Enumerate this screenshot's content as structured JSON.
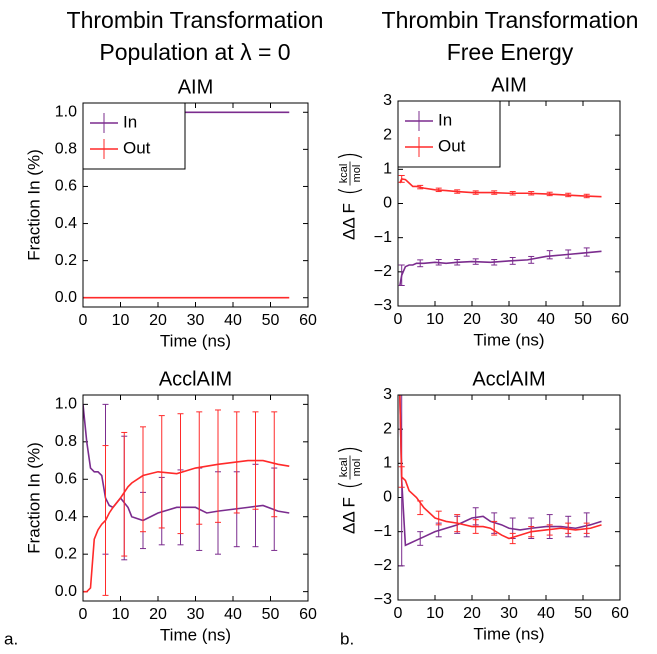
{
  "figure": {
    "column_titles": [
      [
        "Thrombin Transformation",
        "Population at λ = 0"
      ],
      [
        "Thrombin Transformation",
        "Free Energy"
      ]
    ],
    "panel_labels": [
      "a.",
      "b."
    ]
  },
  "chart_data": [
    {
      "type": "line",
      "title": "AIM",
      "xlabel": "Time (ns)",
      "ylabel": "Fraction In (%)",
      "xlim": [
        0,
        60
      ],
      "ylim": [
        -0.05,
        1.05
      ],
      "xticks": [
        0,
        10,
        20,
        30,
        40,
        50,
        60
      ],
      "yticks": [
        {
          "value": 0,
          "label": "0.0"
        },
        0.2,
        0.4,
        0.6,
        0.8,
        {
          "value": 1,
          "label": "1.0"
        }
      ],
      "legend": "upper left",
      "x": [
        0,
        55
      ],
      "series": [
        {
          "name": "In",
          "color": "#7b2c8e",
          "values": [
            1,
            1
          ]
        },
        {
          "name": "Out",
          "color": "#ff2a2a",
          "values": [
            0,
            0
          ]
        }
      ]
    },
    {
      "type": "line",
      "title": "AIM",
      "xlabel": "Time (ns)",
      "ylabel": "ΔΔ F",
      "ylabel_unit": [
        "kcal",
        "mol"
      ],
      "xlim": [
        0,
        60
      ],
      "ylim": [
        -3,
        3
      ],
      "xticks": [
        0,
        10,
        20,
        30,
        40,
        50,
        60
      ],
      "yticks": [
        {
          "value": -3,
          "label": "−3"
        },
        {
          "value": -2,
          "label": "−2"
        },
        {
          "value": -1,
          "label": "−1"
        },
        0,
        1,
        2,
        3
      ],
      "legend": "upper left",
      "x": [
        0.5,
        1,
        2,
        3,
        4,
        5,
        7,
        10,
        13,
        16,
        20,
        25,
        30,
        35,
        40,
        45,
        50,
        55
      ],
      "series": [
        {
          "name": "In",
          "color": "#7b2c8e",
          "values": [
            -2.4,
            -2.1,
            -1.85,
            -1.8,
            -1.8,
            -1.75,
            -1.75,
            -1.72,
            -1.75,
            -1.72,
            -1.7,
            -1.72,
            -1.68,
            -1.65,
            -1.55,
            -1.5,
            -1.45,
            -1.4
          ],
          "error_x": [
            1,
            6,
            11,
            16,
            21,
            26,
            31,
            36,
            41,
            46,
            51
          ],
          "error_y": [
            -2.1,
            -1.75,
            -1.72,
            -1.72,
            -1.7,
            -1.72,
            -1.68,
            -1.65,
            -1.5,
            -1.48,
            -1.42
          ],
          "errors": [
            0.3,
            0.1,
            0.08,
            0.08,
            0.08,
            0.08,
            0.1,
            0.1,
            0.12,
            0.12,
            0.12
          ]
        },
        {
          "name": "Out",
          "color": "#ff2a2a",
          "values": [
            0.6,
            0.72,
            0.7,
            0.6,
            0.5,
            0.5,
            0.45,
            0.4,
            0.38,
            0.35,
            0.32,
            0.32,
            0.3,
            0.3,
            0.28,
            0.25,
            0.22,
            0.2
          ],
          "error_x": [
            1,
            6,
            11,
            16,
            21,
            26,
            31,
            36,
            41,
            46,
            51
          ],
          "error_y": [
            0.72,
            0.48,
            0.4,
            0.35,
            0.32,
            0.32,
            0.3,
            0.3,
            0.28,
            0.25,
            0.22
          ],
          "errors": [
            0.1,
            0.05,
            0.05,
            0.05,
            0.05,
            0.05,
            0.05,
            0.05,
            0.05,
            0.05,
            0.05
          ]
        }
      ]
    },
    {
      "type": "line",
      "title": "AcclAIM",
      "xlabel": "Time (ns)",
      "ylabel": "Fraction In (%)",
      "xlim": [
        0,
        60
      ],
      "ylim": [
        -0.05,
        1.05
      ],
      "xticks": [
        0,
        10,
        20,
        30,
        40,
        50,
        60
      ],
      "yticks": [
        {
          "value": 0,
          "label": "0.0"
        },
        0.2,
        0.4,
        0.6,
        0.8,
        {
          "value": 1,
          "label": "1.0"
        }
      ],
      "x": [
        0,
        1,
        2,
        3,
        4,
        5,
        6,
        7,
        8,
        10,
        12,
        13,
        16,
        20,
        25,
        30,
        33,
        36,
        40,
        44,
        48,
        52,
        55
      ],
      "series": [
        {
          "name": "In",
          "color": "#7b2c8e",
          "values": [
            1.0,
            0.8,
            0.66,
            0.64,
            0.64,
            0.62,
            0.5,
            0.46,
            0.45,
            0.5,
            0.45,
            0.4,
            0.38,
            0.42,
            0.45,
            0.45,
            0.42,
            0.43,
            0.44,
            0.45,
            0.46,
            0.43,
            0.42
          ],
          "error_x": [
            6,
            11,
            16,
            21,
            26,
            31,
            36,
            41,
            46,
            51
          ],
          "error_y": [
            0.6,
            0.5,
            0.38,
            0.43,
            0.45,
            0.44,
            0.42,
            0.44,
            0.46,
            0.44
          ],
          "errors": [
            0.4,
            0.33,
            0.15,
            0.18,
            0.2,
            0.22,
            0.22,
            0.2,
            0.22,
            0.22
          ]
        },
        {
          "name": "Out",
          "color": "#ff2a2a",
          "values": [
            0,
            0,
            0.02,
            0.28,
            0.33,
            0.36,
            0.38,
            0.42,
            0.45,
            0.5,
            0.56,
            0.58,
            0.62,
            0.64,
            0.63,
            0.66,
            0.67,
            0.68,
            0.69,
            0.7,
            0.7,
            0.68,
            0.67
          ],
          "error_x": [
            6,
            11,
            16,
            21,
            26,
            31,
            36,
            41,
            46,
            51
          ],
          "error_y": [
            0.38,
            0.52,
            0.6,
            0.64,
            0.63,
            0.66,
            0.67,
            0.69,
            0.7,
            0.68
          ],
          "errors": [
            0.4,
            0.33,
            0.28,
            0.3,
            0.32,
            0.3,
            0.3,
            0.27,
            0.26,
            0.28
          ]
        }
      ]
    },
    {
      "type": "line",
      "title": "AcclAIM",
      "xlabel": "Time (ns)",
      "ylabel": "ΔΔ F",
      "ylabel_unit": [
        "kcal",
        "mol"
      ],
      "xlim": [
        0,
        60
      ],
      "ylim": [
        -3,
        3
      ],
      "xticks": [
        0,
        10,
        20,
        30,
        40,
        50,
        60
      ],
      "yticks": [
        {
          "value": -3,
          "label": "−3"
        },
        {
          "value": -2,
          "label": "−2"
        },
        {
          "value": -1,
          "label": "−1"
        },
        0,
        1,
        2,
        3
      ],
      "x": [
        0.5,
        1,
        2,
        3,
        5,
        7,
        10,
        13,
        16,
        20,
        23,
        25,
        28,
        30,
        33,
        36,
        40,
        44,
        48,
        52,
        55
      ],
      "series": [
        {
          "name": "In",
          "color": "#7b2c8e",
          "values": [
            3,
            0.5,
            -1.4,
            -1.35,
            -1.25,
            -1.15,
            -1.0,
            -0.9,
            -0.8,
            -0.6,
            -0.55,
            -0.7,
            -0.8,
            -0.9,
            -0.95,
            -0.9,
            -0.85,
            -0.85,
            -0.9,
            -0.8,
            -0.7
          ],
          "error_x": [
            1,
            6,
            11,
            16,
            21,
            26,
            31,
            36,
            41,
            46,
            51
          ],
          "error_y": [
            0.5,
            -1.2,
            -0.95,
            -0.8,
            -0.55,
            -0.75,
            -0.9,
            -0.9,
            -0.85,
            -0.85,
            -0.8
          ],
          "errors": [
            2.5,
            0.2,
            0.2,
            0.25,
            0.25,
            0.3,
            0.3,
            0.3,
            0.35,
            0.3,
            0.35
          ]
        },
        {
          "name": "Out",
          "color": "#ff2a2a",
          "values": [
            3,
            0.6,
            0.5,
            0.2,
            0.0,
            -0.3,
            -0.6,
            -0.7,
            -0.75,
            -0.85,
            -0.85,
            -0.9,
            -1.1,
            -1.2,
            -1.1,
            -1.0,
            -0.95,
            -0.9,
            -0.95,
            -0.9,
            -0.8
          ],
          "error_x": [
            1,
            6,
            11,
            16,
            21,
            26,
            31,
            36,
            41,
            46,
            51
          ],
          "error_y": [
            0.6,
            -0.3,
            -0.6,
            -0.75,
            -0.85,
            -0.9,
            -1.2,
            -1.0,
            -0.95,
            -0.9,
            -0.9
          ],
          "errors": [
            0.3,
            0.2,
            0.2,
            0.25,
            0.2,
            0.2,
            0.15,
            0.15,
            0.15,
            0.15,
            0.15
          ]
        }
      ]
    }
  ]
}
